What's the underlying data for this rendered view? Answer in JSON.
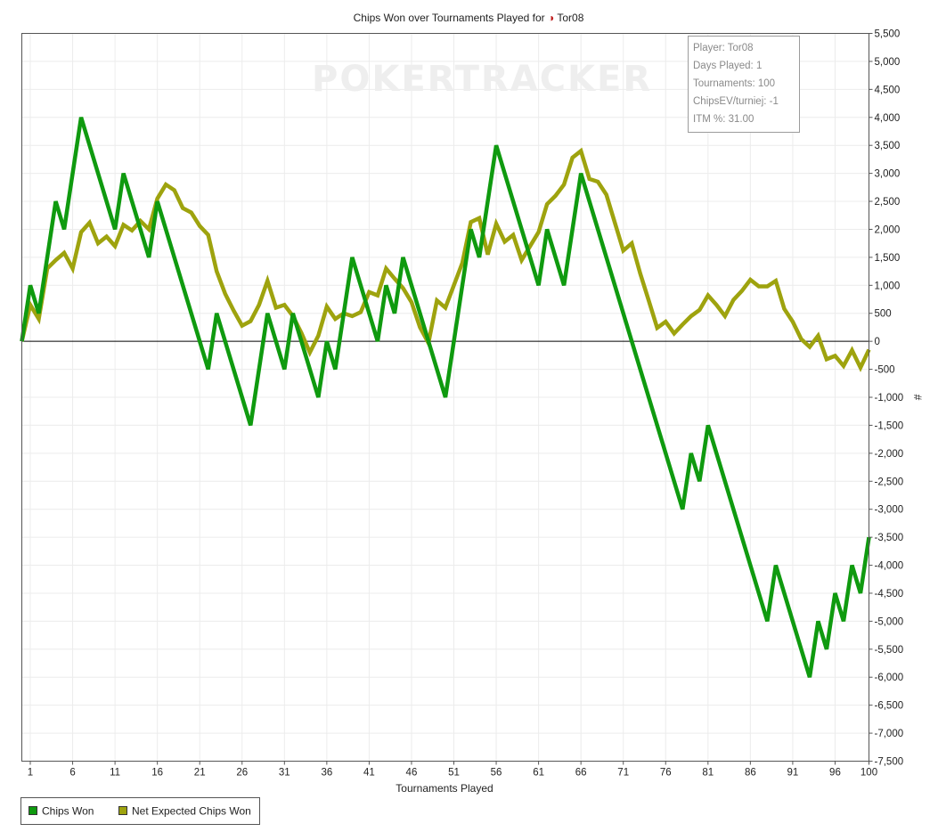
{
  "chart_data": {
    "type": "line",
    "title": "Chips Won over Tournaments Played for Tor08",
    "title_prefix": "Chips Won over Tournaments Played for",
    "player_name": "Tor08",
    "xlabel": "Tournaments Played",
    "ylabel": "#",
    "xlim": [
      0,
      100
    ],
    "ylim": [
      -7500,
      5500
    ],
    "grid": true,
    "legend_position": "bottom-left",
    "x_ticks": [
      "1",
      "6",
      "11",
      "16",
      "21",
      "26",
      "31",
      "36",
      "41",
      "46",
      "51",
      "56",
      "61",
      "66",
      "71",
      "76",
      "81",
      "86",
      "91",
      "96",
      "100"
    ],
    "y_ticks": [
      "5,500",
      "5,000",
      "4,500",
      "4,000",
      "3,500",
      "3,000",
      "2,500",
      "2,000",
      "1,500",
      "1,000",
      "500",
      "0",
      "-500",
      "-1,000",
      "-1,500",
      "-2,000",
      "-2,500",
      "-3,000",
      "-3,500",
      "-4,000",
      "-4,500",
      "-5,000",
      "-5,500",
      "-6,000",
      "-6,500",
      "-7,000",
      "-7,500"
    ],
    "watermark": "POKERTRACKER",
    "info_box": [
      "Player: Tor08",
      "Days Played: 1",
      "Tournaments: 100",
      "ChipsEV/turniej: -1",
      "ITM %: 31.00"
    ],
    "series": [
      {
        "name": "Chips Won",
        "color": "#0f9a0f",
        "points": [
          [
            0,
            0
          ],
          [
            1,
            1000
          ],
          [
            2,
            500
          ],
          [
            4,
            2500
          ],
          [
            5,
            2000
          ],
          [
            7,
            4000
          ],
          [
            11,
            2000
          ],
          [
            12,
            3000
          ],
          [
            15,
            1500
          ],
          [
            16,
            2500
          ],
          [
            22,
            -500
          ],
          [
            23,
            500
          ],
          [
            27,
            -1500
          ],
          [
            29,
            500
          ],
          [
            31,
            -500
          ],
          [
            32,
            500
          ],
          [
            35,
            -1000
          ],
          [
            36,
            0
          ],
          [
            37,
            -500
          ],
          [
            39,
            1500
          ],
          [
            42,
            0
          ],
          [
            43,
            1000
          ],
          [
            44,
            500
          ],
          [
            45,
            1500
          ],
          [
            48,
            0
          ],
          [
            50,
            -1000
          ],
          [
            53,
            2000
          ],
          [
            54,
            1500
          ],
          [
            56,
            3500
          ],
          [
            61,
            1000
          ],
          [
            62,
            2000
          ],
          [
            64,
            1000
          ],
          [
            66,
            3000
          ],
          [
            78,
            -3000
          ],
          [
            79,
            -2000
          ],
          [
            80,
            -2500
          ],
          [
            81,
            -1500
          ],
          [
            88,
            -5000
          ],
          [
            89,
            -4000
          ],
          [
            93,
            -6000
          ],
          [
            94,
            -5000
          ],
          [
            95,
            -5500
          ],
          [
            96,
            -4500
          ],
          [
            97,
            -5000
          ],
          [
            98,
            -4000
          ],
          [
            99,
            -4500
          ],
          [
            100,
            -3500
          ]
        ]
      },
      {
        "name": "Net Expected Chips Won",
        "color": "#9ea30e",
        "points": [
          [
            0,
            0
          ],
          [
            1,
            650
          ],
          [
            2,
            400
          ],
          [
            3,
            1300
          ],
          [
            4,
            1450
          ],
          [
            5,
            1580
          ],
          [
            6,
            1300
          ],
          [
            7,
            1950
          ],
          [
            8,
            2120
          ],
          [
            9,
            1750
          ],
          [
            10,
            1870
          ],
          [
            11,
            1700
          ],
          [
            12,
            2080
          ],
          [
            13,
            1980
          ],
          [
            14,
            2150
          ],
          [
            15,
            2000
          ],
          [
            16,
            2550
          ],
          [
            17,
            2800
          ],
          [
            18,
            2700
          ],
          [
            19,
            2380
          ],
          [
            20,
            2300
          ],
          [
            21,
            2060
          ],
          [
            22,
            1900
          ],
          [
            23,
            1250
          ],
          [
            24,
            850
          ],
          [
            25,
            550
          ],
          [
            26,
            280
          ],
          [
            27,
            360
          ],
          [
            28,
            650
          ],
          [
            29,
            1080
          ],
          [
            30,
            600
          ],
          [
            31,
            650
          ],
          [
            32,
            450
          ],
          [
            33,
            150
          ],
          [
            34,
            -200
          ],
          [
            35,
            100
          ],
          [
            36,
            620
          ],
          [
            37,
            400
          ],
          [
            38,
            500
          ],
          [
            39,
            450
          ],
          [
            40,
            520
          ],
          [
            41,
            880
          ],
          [
            42,
            820
          ],
          [
            43,
            1300
          ],
          [
            44,
            1120
          ],
          [
            45,
            950
          ],
          [
            46,
            700
          ],
          [
            47,
            250
          ],
          [
            48,
            -30
          ],
          [
            49,
            730
          ],
          [
            50,
            600
          ],
          [
            51,
            1000
          ],
          [
            52,
            1400
          ],
          [
            53,
            2130
          ],
          [
            54,
            2200
          ],
          [
            55,
            1550
          ],
          [
            56,
            2100
          ],
          [
            57,
            1780
          ],
          [
            58,
            1900
          ],
          [
            59,
            1450
          ],
          [
            60,
            1700
          ],
          [
            61,
            1950
          ],
          [
            62,
            2450
          ],
          [
            63,
            2600
          ],
          [
            64,
            2800
          ],
          [
            65,
            3280
          ],
          [
            66,
            3400
          ],
          [
            67,
            2900
          ],
          [
            68,
            2850
          ],
          [
            69,
            2620
          ],
          [
            70,
            2120
          ],
          [
            71,
            1620
          ],
          [
            72,
            1750
          ],
          [
            73,
            1210
          ],
          [
            74,
            730
          ],
          [
            75,
            240
          ],
          [
            76,
            350
          ],
          [
            77,
            140
          ],
          [
            78,
            300
          ],
          [
            79,
            450
          ],
          [
            80,
            560
          ],
          [
            81,
            820
          ],
          [
            82,
            650
          ],
          [
            83,
            450
          ],
          [
            84,
            740
          ],
          [
            85,
            900
          ],
          [
            86,
            1100
          ],
          [
            87,
            980
          ],
          [
            88,
            980
          ],
          [
            89,
            1080
          ],
          [
            90,
            580
          ],
          [
            91,
            350
          ],
          [
            92,
            40
          ],
          [
            93,
            -100
          ],
          [
            94,
            100
          ],
          [
            95,
            -320
          ],
          [
            96,
            -260
          ],
          [
            97,
            -440
          ],
          [
            98,
            -160
          ],
          [
            99,
            -470
          ],
          [
            100,
            -150
          ]
        ]
      }
    ]
  }
}
